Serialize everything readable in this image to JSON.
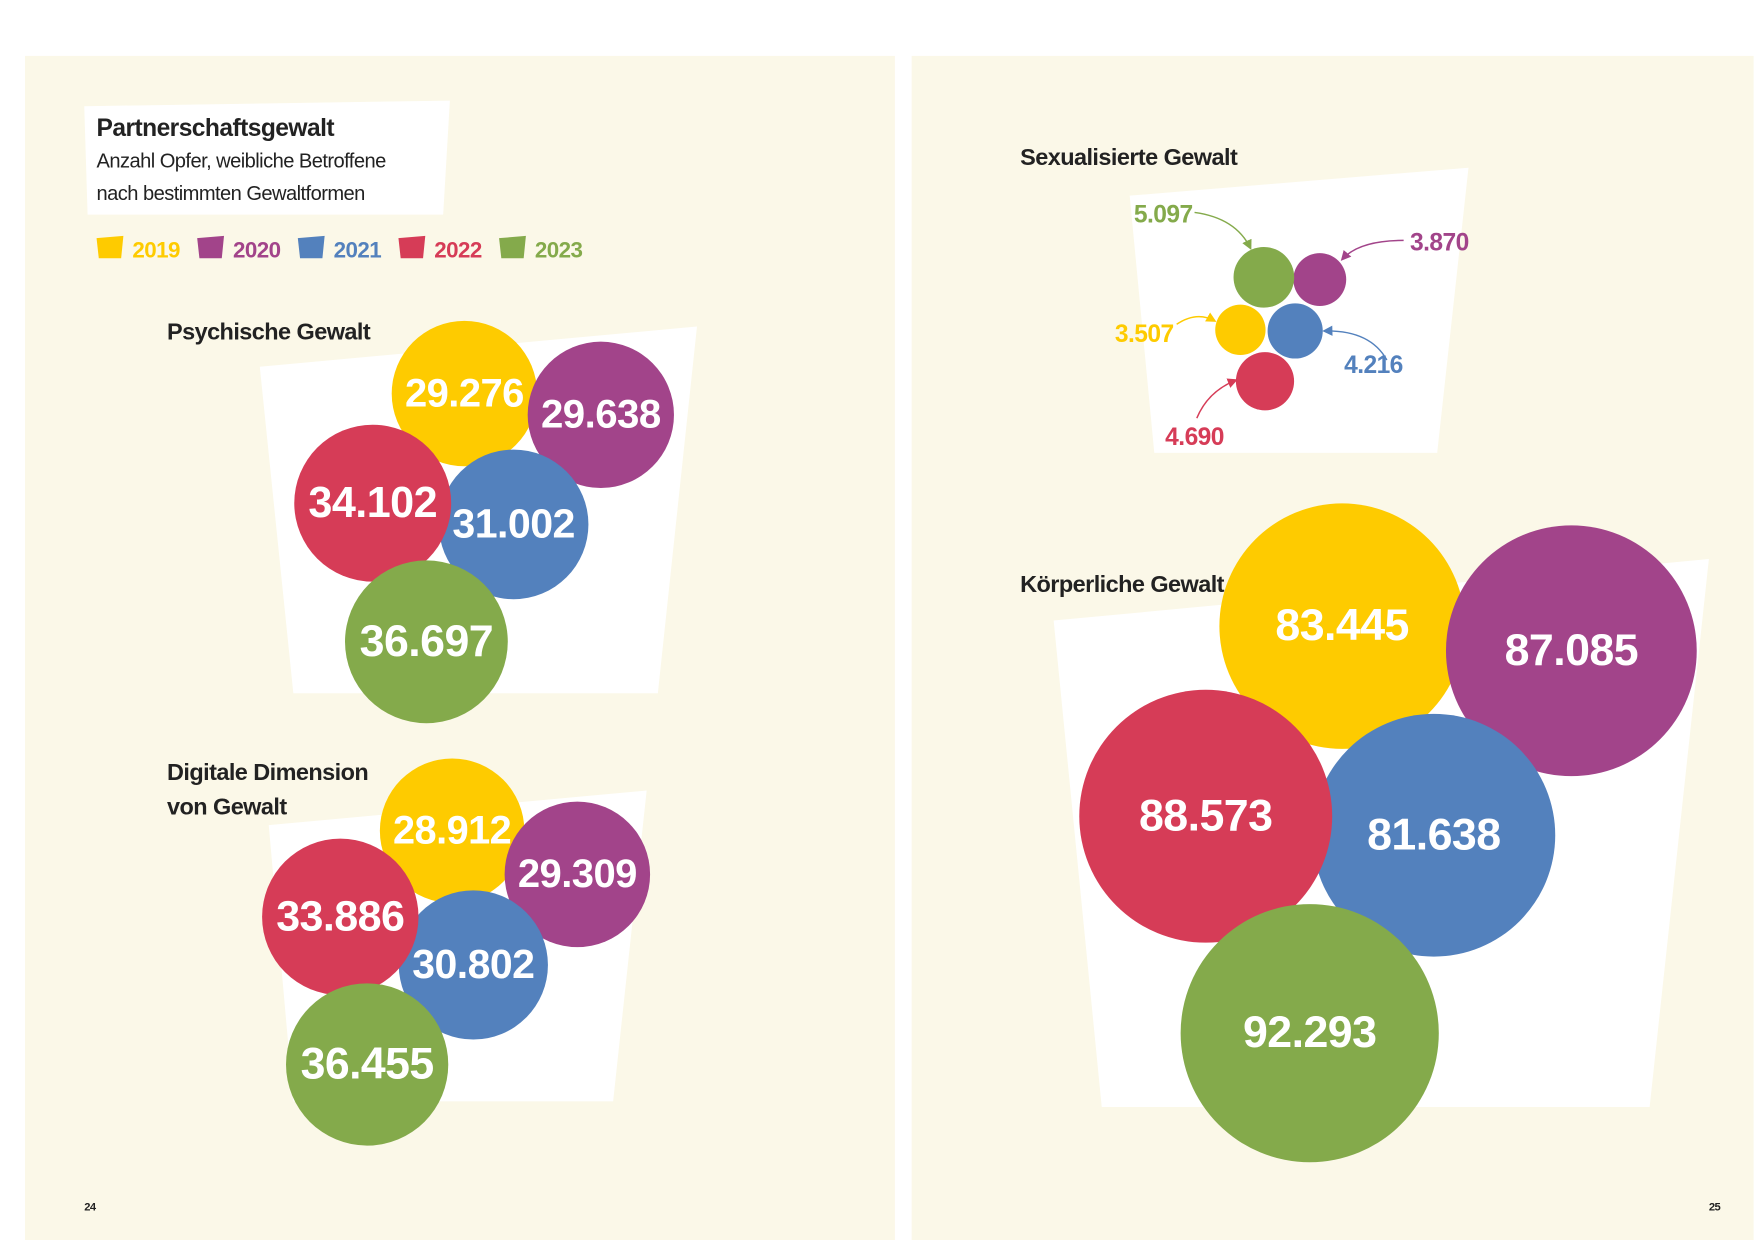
{
  "header": {
    "title": "Partnerschaftsgewalt",
    "subtitle": [
      "Anzahl Opfer, weibliche Betroffene",
      "nach bestimmten Gewaltformen"
    ]
  },
  "legend": {
    "names": [
      "2019",
      "2020",
      "2021",
      "2022",
      "2023"
    ],
    "colors": [
      "#fecb00",
      "#a2448a",
      "#5381bd",
      "#d63c57",
      "#84aa4b"
    ]
  },
  "chart_data": [
    {
      "type": "bubble",
      "title": [
        "Psychische Gewalt"
      ],
      "values": [
        29276,
        29638,
        31002,
        34102,
        36697
      ],
      "value_labels": [
        "29.276",
        "29.638",
        "31.002",
        "34.102",
        "36.697"
      ]
    },
    {
      "type": "bubble",
      "title": [
        "Digitale Dimension",
        "von Gewalt"
      ],
      "values": [
        28912,
        29309,
        30802,
        33886,
        36455
      ],
      "value_labels": [
        "28.912",
        "29.309",
        "30.802",
        "33.886",
        "36.455"
      ]
    },
    {
      "type": "bubble",
      "title": [
        "Sexualisierte Gewalt"
      ],
      "values": [
        3507,
        3870,
        4216,
        4690,
        5097
      ],
      "value_labels": [
        "3.507",
        "3.870",
        "4.216",
        "4.690",
        "5.097"
      ]
    },
    {
      "type": "bubble",
      "title": [
        "Körperliche Gewalt"
      ],
      "values": [
        83445,
        87085,
        81638,
        88573,
        92293
      ],
      "value_labels": [
        "83.445",
        "87.085",
        "81.638",
        "88.573",
        "92.293"
      ]
    }
  ],
  "page_numbers": [
    "24",
    "25"
  ]
}
